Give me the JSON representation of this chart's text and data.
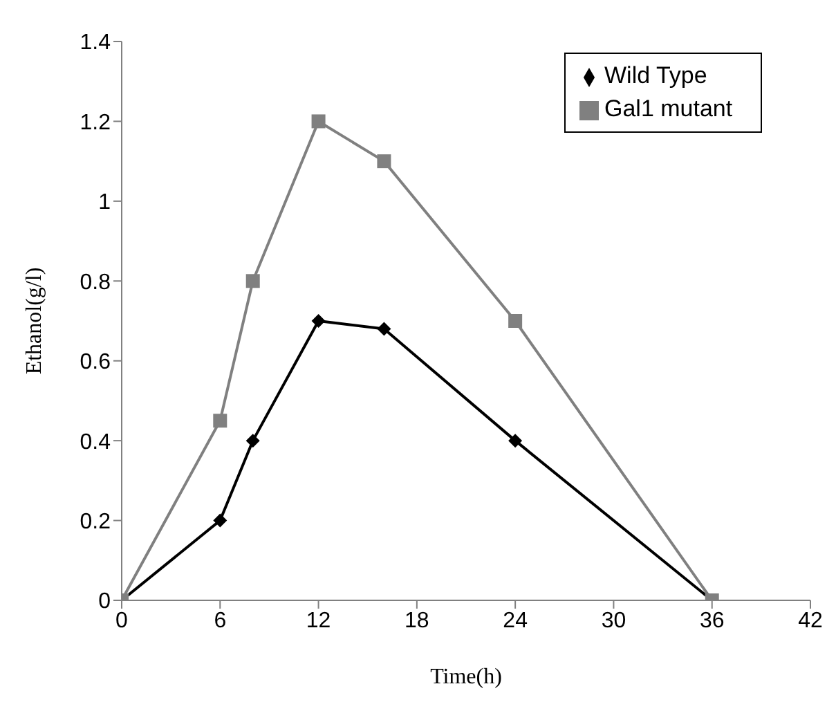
{
  "chart_data": {
    "type": "line",
    "xlabel": "Time(h)",
    "ylabel": "Ethanol(g/l)",
    "xlim": [
      0,
      42
    ],
    "xticks": [
      0,
      6,
      12,
      18,
      24,
      30,
      36,
      42
    ],
    "ylim": [
      0,
      1.4
    ],
    "yticks": [
      0,
      0.2,
      0.4,
      0.6,
      0.8,
      1,
      1.2,
      1.4
    ],
    "grid": false,
    "legend": "top right",
    "x": [
      0,
      6,
      8,
      12,
      16,
      24,
      36
    ],
    "series": [
      {
        "name": "Wild Type",
        "color": "#000000",
        "marker": "diamond",
        "values": [
          0,
          0.2,
          0.4,
          0.7,
          0.68,
          0.4,
          0
        ]
      },
      {
        "name": "Gal1 mutant",
        "color": "#808080",
        "marker": "square",
        "values": [
          0,
          0.45,
          0.8,
          1.2,
          1.1,
          0.7,
          0
        ]
      }
    ]
  }
}
